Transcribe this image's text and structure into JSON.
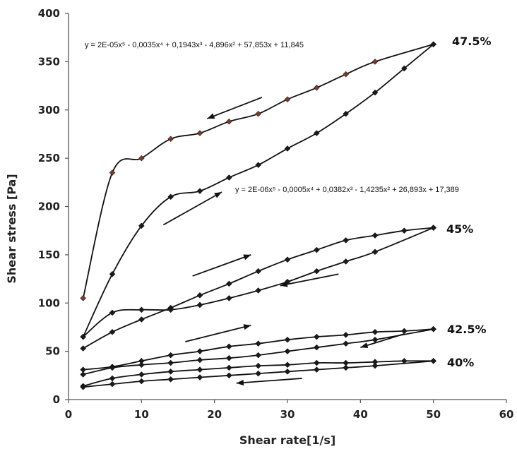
{
  "chart_data": {
    "type": "scatter",
    "xlabel": "Shear rate[1/s]",
    "ylabel": "Shear stress [Pa]",
    "xlim": [
      0,
      60
    ],
    "ylim": [
      0,
      400
    ],
    "xticks": [
      "0",
      "10",
      "20",
      "30",
      "40",
      "50",
      "60"
    ],
    "yticks": [
      "0",
      "50",
      "100",
      "150",
      "200",
      "250",
      "300",
      "350",
      "400"
    ],
    "grid": false,
    "legend": "none",
    "annotations": [
      "y = 2E-05x⁵ - 0,0035x⁴ + 0,1943x³ - 4,896x² + 57,853x + 11,845",
      "y = 2E-06x⁵ - 0,0005x⁴ + 0,0382x³ - 1,4235x² + 26,893x + 17,389"
    ],
    "series": [
      {
        "name": "47.5%",
        "direction": "down",
        "x": [
          2,
          6,
          10,
          14,
          18,
          22,
          26,
          30,
          34,
          38,
          42,
          50
        ],
        "y": [
          105,
          235,
          250,
          270,
          276,
          288,
          296,
          311,
          323,
          337,
          350,
          368
        ]
      },
      {
        "name": "47.5%",
        "direction": "up",
        "x": [
          2,
          6,
          10,
          14,
          18,
          22,
          26,
          30,
          34,
          38,
          42,
          46,
          50
        ],
        "y": [
          65,
          130,
          180,
          210,
          216,
          230,
          243,
          260,
          276,
          296,
          318,
          343,
          368
        ]
      },
      {
        "name": "45%",
        "direction": "up",
        "x": [
          2,
          6,
          10,
          14,
          18,
          22,
          26,
          30,
          34,
          38,
          42,
          46,
          50
        ],
        "y": [
          53,
          70,
          83,
          95,
          108,
          120,
          133,
          145,
          155,
          165,
          170,
          175,
          178
        ]
      },
      {
        "name": "45%",
        "direction": "down",
        "x": [
          2,
          6,
          10,
          14,
          18,
          22,
          26,
          30,
          34,
          38,
          42,
          50
        ],
        "y": [
          65,
          90,
          93,
          93,
          98,
          105,
          113,
          122,
          133,
          143,
          153,
          178
        ]
      },
      {
        "name": "42.5%",
        "direction": "up",
        "x": [
          2,
          6,
          10,
          14,
          18,
          22,
          26,
          30,
          34,
          38,
          42,
          46,
          50
        ],
        "y": [
          31,
          34,
          40,
          46,
          50,
          55,
          58,
          62,
          65,
          67,
          70,
          71,
          73
        ]
      },
      {
        "name": "42.5%",
        "direction": "down",
        "x": [
          2,
          6,
          10,
          14,
          18,
          22,
          26,
          30,
          34,
          38,
          42,
          50
        ],
        "y": [
          26,
          33,
          36,
          38,
          41,
          43,
          46,
          50,
          54,
          58,
          62,
          73
        ]
      },
      {
        "name": "40%",
        "direction": "up",
        "x": [
          2,
          6,
          10,
          14,
          18,
          22,
          26,
          30,
          34,
          38,
          42,
          46,
          50
        ],
        "y": [
          14,
          22,
          26,
          29,
          31,
          33,
          35,
          36,
          38,
          38,
          39,
          40,
          40
        ]
      },
      {
        "name": "40%",
        "direction": "down",
        "x": [
          2,
          6,
          10,
          14,
          18,
          22,
          26,
          30,
          34,
          38,
          42,
          50
        ],
        "y": [
          13,
          16,
          19,
          21,
          23,
          25,
          27,
          29,
          31,
          33,
          35,
          40
        ]
      }
    ],
    "colors": {
      "line": "#111111",
      "marker": "#1a1a1a",
      "marker_alt": "#7a3b2e"
    }
  }
}
